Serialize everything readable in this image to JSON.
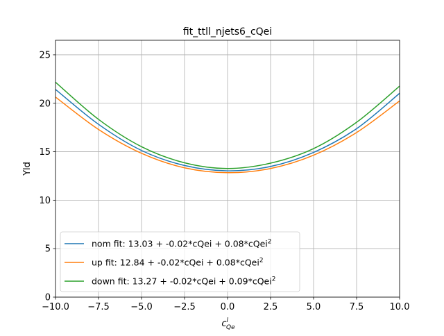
{
  "chart_data": {
    "type": "line",
    "title": "fit_ttll_njets6_cQei",
    "xlabel_base": "c",
    "xlabel_sup": "l",
    "xlabel_sub": "Qe",
    "ylabel": "Yld",
    "xlim": [
      -10,
      10
    ],
    "ylim": [
      0,
      26.5
    ],
    "grid": true,
    "legend_position": "lower-left",
    "x_ticks": [
      -10,
      -7.5,
      -5,
      -2.5,
      0,
      2.5,
      5,
      7.5,
      10
    ],
    "x_tick_labels": [
      "−10.0",
      "−7.5",
      "−5.0",
      "−2.5",
      "0.0",
      "2.5",
      "5.0",
      "7.5",
      "10.0"
    ],
    "y_ticks": [
      0,
      5,
      10,
      15,
      20,
      25
    ],
    "y_tick_labels": [
      "0",
      "5",
      "10",
      "15",
      "20",
      "25"
    ],
    "series": [
      {
        "name": "nom fit: 13.03 + -0.02*cQei + 0.08*cQei",
        "name_sup": "2",
        "color": "#1f77b4",
        "x": [
          -10,
          -7.5,
          -5,
          -2.5,
          0,
          2.5,
          5,
          7.5,
          10
        ],
        "y": [
          21.43,
          17.83,
          15.13,
          13.58,
          13.03,
          13.48,
          14.93,
          17.38,
          21.03
        ]
      },
      {
        "name": "up fit: 12.84 + -0.02*cQei + 0.08*cQei",
        "name_sup": "2",
        "color": "#ff7f0e",
        "x": [
          -10,
          -7.5,
          -5,
          -2.5,
          0,
          2.5,
          5,
          7.5,
          10
        ],
        "y": [
          20.64,
          17.3,
          14.84,
          13.34,
          12.84,
          13.27,
          14.64,
          16.98,
          20.24
        ]
      },
      {
        "name": "down fit: 13.27 + -0.02*cQei + 0.09*cQei",
        "name_sup": "2",
        "color": "#2ca02c",
        "x": [
          -10,
          -7.5,
          -5,
          -2.5,
          0,
          2.5,
          5,
          7.5,
          10
        ],
        "y": [
          22.17,
          18.34,
          15.52,
          13.86,
          13.27,
          13.82,
          15.32,
          18.04,
          21.77
        ]
      }
    ]
  }
}
